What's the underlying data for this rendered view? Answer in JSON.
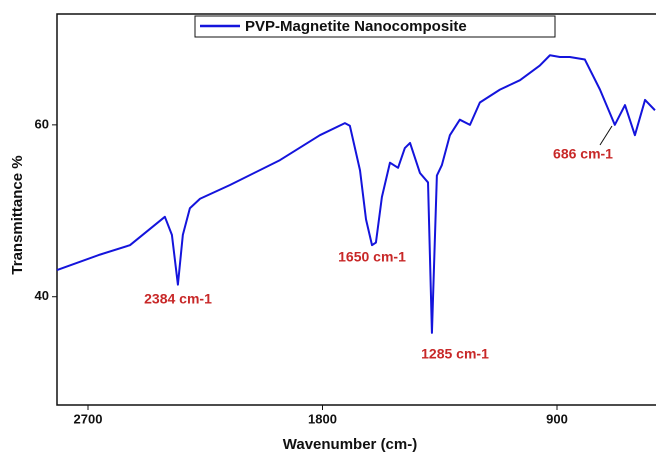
{
  "chart_data": {
    "type": "line",
    "x_label": "Wavenumber (cm-)",
    "y_label": "Transmittance %",
    "xlim": [
      2819,
      520
    ],
    "ylim": [
      27.4,
      72.9
    ],
    "xticks": [
      2700,
      1800,
      900
    ],
    "yticks": [
      40,
      60
    ],
    "annotations": [
      "2384 cm-1",
      "1650 cm-1",
      "1285 cm-1",
      "686 cm-1"
    ],
    "series": [
      {
        "name": "PVP-Magnetite Nanocomposite",
        "color": "#1414dc",
        "x": [
          2819,
          2654,
          2539,
          2405,
          2378,
          2355,
          2336,
          2309,
          2270,
          2155,
          1963,
          1810,
          1714,
          1695,
          1656,
          1633,
          1610,
          1595,
          1572,
          1541,
          1510,
          1484,
          1464,
          1426,
          1395,
          1380,
          1361,
          1342,
          1311,
          1273,
          1234,
          1196,
          1119,
          1042,
          966,
          927,
          889,
          851,
          793,
          735,
          678,
          639,
          601,
          562,
          524
        ],
        "values": [
          43.1,
          44.9,
          46.0,
          49.3,
          47.2,
          41.4,
          47.2,
          50.3,
          51.4,
          53.0,
          55.9,
          58.8,
          60.2,
          59.9,
          54.7,
          49.0,
          46.0,
          46.3,
          51.6,
          55.6,
          55.0,
          57.3,
          57.9,
          54.4,
          53.3,
          35.8,
          54.1,
          55.3,
          58.8,
          60.6,
          60.0,
          62.6,
          64.1,
          65.2,
          66.9,
          68.1,
          67.9,
          67.9,
          67.6,
          64.1,
          60.0,
          62.3,
          58.8,
          62.9,
          61.7
        ]
      }
    ],
    "legend": "top"
  }
}
